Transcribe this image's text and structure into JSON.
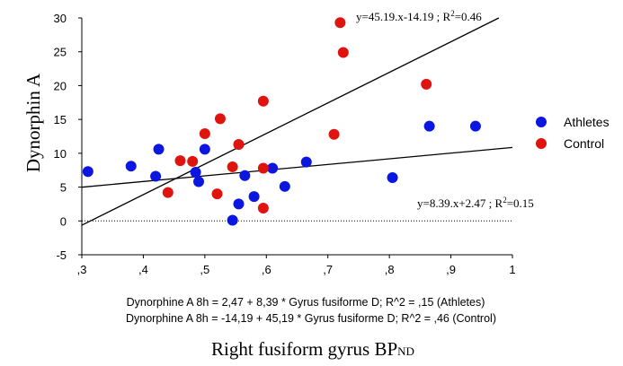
{
  "chart_data": {
    "type": "scatter",
    "title": "",
    "xlabel": "Right fusiform gyrus BP",
    "xlabel_sub": "ND",
    "ylabel": "Dynorphin A",
    "xlim": [
      0.3,
      1.0
    ],
    "ylim": [
      -5,
      30
    ],
    "x_ticks": [
      0.3,
      0.4,
      0.5,
      0.6,
      0.7,
      0.8,
      0.9,
      1.0
    ],
    "x_tick_labels": [
      ",3",
      ",4",
      ",5",
      ",6",
      ",7",
      ",8",
      ",9",
      "1"
    ],
    "y_ticks": [
      -5,
      0,
      5,
      10,
      15,
      20,
      25,
      30
    ],
    "y_tick_labels": [
      "-5",
      "0",
      "5",
      "10",
      "15",
      "20",
      "25",
      "30"
    ],
    "legend_position": "right",
    "zero_line": true,
    "series": [
      {
        "name": "Athletes",
        "color": "#0b16e0",
        "points": [
          [
            0.31,
            7.3
          ],
          [
            0.38,
            8.1
          ],
          [
            0.42,
            6.6
          ],
          [
            0.425,
            10.6
          ],
          [
            0.485,
            7.2
          ],
          [
            0.49,
            5.8
          ],
          [
            0.5,
            10.6
          ],
          [
            0.545,
            0.1
          ],
          [
            0.555,
            2.5
          ],
          [
            0.565,
            6.7
          ],
          [
            0.58,
            3.6
          ],
          [
            0.61,
            7.8
          ],
          [
            0.63,
            5.1
          ],
          [
            0.665,
            8.7
          ],
          [
            0.805,
            6.4
          ],
          [
            0.865,
            14.0
          ],
          [
            0.94,
            14.0
          ]
        ],
        "fit": {
          "slope": 8.39,
          "intercept": 2.47
        },
        "equation_label": "y=8.39.x+2.47 ; R",
        "r2_label": "=0.15"
      },
      {
        "name": "Control",
        "color": "#e0140f",
        "points": [
          [
            0.44,
            4.2
          ],
          [
            0.46,
            8.9
          ],
          [
            0.48,
            8.8
          ],
          [
            0.5,
            12.9
          ],
          [
            0.52,
            4.0
          ],
          [
            0.525,
            15.1
          ],
          [
            0.545,
            8.0
          ],
          [
            0.555,
            11.3
          ],
          [
            0.595,
            17.7
          ],
          [
            0.595,
            7.8
          ],
          [
            0.595,
            1.9
          ],
          [
            0.71,
            12.8
          ],
          [
            0.72,
            29.3
          ],
          [
            0.725,
            24.9
          ],
          [
            0.86,
            20.2
          ]
        ],
        "fit": {
          "slope": 45.19,
          "intercept": -14.19
        },
        "equation_label": "y=45.19.x-14.19 ; R",
        "r2_label": "=0.46"
      }
    ],
    "footnotes": [
      "Dynorphine A 8h = 2,47 + 8,39 * Gyrus fusiforme D; R^2 = ,15 (Athletes)",
      "Dynorphine A 8h = -14,19 + 45,19 * Gyrus fusiforme D; R^2 = ,46 (Control)"
    ]
  }
}
